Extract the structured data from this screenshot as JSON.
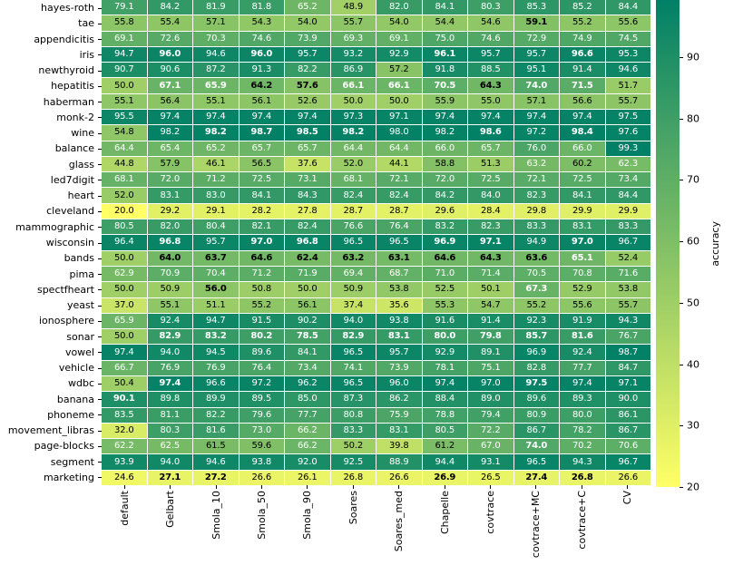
{
  "figure": {
    "background": "#ffffff",
    "grid_line_color": "#ffffff",
    "axis_tick_color": "#000000"
  },
  "chart_data": {
    "type": "heatmap",
    "title": "",
    "colorbar_label": "accuracy",
    "colormap_name": "summer_r (yellow to sea-green)",
    "colormap_stops": [
      {
        "t": 0.0,
        "color": "#ffff66"
      },
      {
        "t": 0.5,
        "color": "#80bf66"
      },
      {
        "t": 1.0,
        "color": "#008066"
      }
    ],
    "vmin": 20.0,
    "vmax": 99.3,
    "colorbar_ticks": [
      90,
      80,
      70,
      60,
      50,
      40,
      30,
      20
    ],
    "legend_position": "right",
    "annotation_rule": {
      "normal_white_min": 62.0,
      "bold_white_min": 65.0,
      "light_text": "#ffffff",
      "dark_text": "#000000"
    },
    "columns": [
      "default",
      "Gelbart",
      "Smola_10",
      "Smola_50",
      "Smola_90",
      "Soares",
      "Soares_med",
      "Chapelle",
      "covtrace",
      "covtrace+MC",
      "covtrace+C",
      "CV"
    ],
    "rows": [
      "hayes-roth",
      "tae",
      "appendicitis",
      "iris",
      "newthyroid",
      "hepatitis",
      "haberman",
      "monk-2",
      "wine",
      "balance",
      "glass",
      "led7digit",
      "heart",
      "cleveland",
      "mammographic",
      "wisconsin",
      "bands",
      "pima",
      "spectfheart",
      "yeast",
      "ionosphere",
      "sonar",
      "vowel",
      "vehicle",
      "wdbc",
      "banana",
      "phoneme",
      "movement_libras",
      "page-blocks",
      "segment",
      "marketing"
    ],
    "values": [
      [
        "79.1",
        "84.2",
        "81.9",
        "81.8",
        "65.2",
        "48.9",
        "82.0",
        "84.1",
        "80.3",
        "85.3",
        "85.2",
        "84.4"
      ],
      [
        "55.8",
        "55.4",
        "57.1",
        "54.3",
        "54.0",
        "55.7",
        "54.0",
        "54.4",
        "54.6",
        "59.1",
        "55.2",
        "55.6"
      ],
      [
        "69.1",
        "72.6",
        "70.3",
        "74.6",
        "73.9",
        "69.3",
        "69.1",
        "75.0",
        "74.6",
        "72.9",
        "74.9",
        "74.5"
      ],
      [
        "94.7",
        "96.0",
        "94.6",
        "96.0",
        "95.7",
        "93.2",
        "92.9",
        "96.1",
        "95.7",
        "95.7",
        "96.6",
        "95.3"
      ],
      [
        "90.7",
        "90.6",
        "87.2",
        "91.3",
        "82.2",
        "86.9",
        "57.2",
        "91.8",
        "88.5",
        "95.1",
        "91.4",
        "94.6"
      ],
      [
        "50.0",
        "67.1",
        "65.9",
        "64.2",
        "57.6",
        "66.1",
        "66.1",
        "70.5",
        "64.3",
        "74.0",
        "71.5",
        "51.7"
      ],
      [
        "55.1",
        "56.4",
        "55.1",
        "56.1",
        "52.6",
        "50.0",
        "50.0",
        "55.9",
        "55.0",
        "57.1",
        "56.6",
        "55.7"
      ],
      [
        "95.5",
        "97.4",
        "97.4",
        "97.4",
        "97.4",
        "97.3",
        "97.1",
        "97.4",
        "97.4",
        "97.4",
        "97.4",
        "97.5"
      ],
      [
        "54.8",
        "98.2",
        "98.2",
        "98.7",
        "98.5",
        "98.2",
        "98.0",
        "98.2",
        "98.6",
        "97.2",
        "98.4",
        "97.6"
      ],
      [
        "64.4",
        "65.4",
        "65.2",
        "65.7",
        "65.7",
        "64.4",
        "64.4",
        "66.0",
        "65.7",
        "76.0",
        "66.0",
        "99.3"
      ],
      [
        "44.8",
        "57.9",
        "46.1",
        "56.5",
        "37.6",
        "52.0",
        "44.1",
        "58.8",
        "51.3",
        "63.2",
        "60.2",
        "62.3"
      ],
      [
        "68.1",
        "72.0",
        "71.2",
        "72.5",
        "73.1",
        "68.1",
        "72.1",
        "72.0",
        "72.5",
        "72.1",
        "72.5",
        "73.4"
      ],
      [
        "52.0",
        "83.1",
        "83.0",
        "84.1",
        "84.3",
        "82.4",
        "82.4",
        "84.2",
        "84.0",
        "82.3",
        "84.1",
        "84.4"
      ],
      [
        "20.0",
        "29.2",
        "29.1",
        "28.2",
        "27.8",
        "28.7",
        "28.7",
        "29.6",
        "28.4",
        "29.8",
        "29.9",
        "29.9"
      ],
      [
        "80.5",
        "82.0",
        "80.4",
        "82.1",
        "82.4",
        "76.6",
        "76.4",
        "83.2",
        "82.3",
        "83.3",
        "83.1",
        "83.3"
      ],
      [
        "96.4",
        "96.8",
        "95.7",
        "97.0",
        "96.8",
        "96.5",
        "96.5",
        "96.9",
        "97.1",
        "94.9",
        "97.0",
        "96.7"
      ],
      [
        "50.0",
        "64.0",
        "63.7",
        "64.6",
        "62.4",
        "63.2",
        "63.1",
        "64.6",
        "64.3",
        "63.6",
        "65.1",
        "52.4"
      ],
      [
        "62.9",
        "70.9",
        "70.4",
        "71.2",
        "71.9",
        "69.4",
        "68.7",
        "71.0",
        "71.4",
        "70.5",
        "70.8",
        "71.6"
      ],
      [
        "50.0",
        "50.9",
        "56.0",
        "50.8",
        "50.0",
        "50.9",
        "53.8",
        "52.5",
        "50.1",
        "67.3",
        "52.9",
        "53.8"
      ],
      [
        "37.0",
        "55.1",
        "51.1",
        "55.2",
        "56.1",
        "37.4",
        "35.6",
        "55.3",
        "54.7",
        "55.2",
        "55.6",
        "55.7"
      ],
      [
        "65.9",
        "92.4",
        "94.7",
        "91.5",
        "90.2",
        "94.0",
        "93.8",
        "91.6",
        "91.4",
        "92.3",
        "91.9",
        "94.3"
      ],
      [
        "50.0",
        "82.9",
        "83.2",
        "80.2",
        "78.5",
        "82.9",
        "83.1",
        "80.0",
        "79.8",
        "85.7",
        "81.6",
        "76.7"
      ],
      [
        "97.4",
        "94.0",
        "94.5",
        "89.6",
        "84.1",
        "96.5",
        "95.7",
        "92.9",
        "89.1",
        "96.9",
        "92.4",
        "98.7"
      ],
      [
        "66.7",
        "76.9",
        "76.9",
        "76.4",
        "73.4",
        "74.1",
        "73.9",
        "78.1",
        "75.1",
        "82.8",
        "77.7",
        "84.7"
      ],
      [
        "50.4",
        "97.4",
        "96.6",
        "97.2",
        "96.2",
        "96.5",
        "96.0",
        "97.4",
        "97.0",
        "97.5",
        "97.4",
        "97.1"
      ],
      [
        "90.1",
        "89.8",
        "89.9",
        "89.5",
        "85.0",
        "87.3",
        "86.2",
        "88.4",
        "89.0",
        "89.6",
        "89.3",
        "90.0"
      ],
      [
        "83.5",
        "81.1",
        "82.2",
        "79.6",
        "77.7",
        "80.8",
        "75.9",
        "78.8",
        "79.4",
        "80.9",
        "80.0",
        "86.1"
      ],
      [
        "32.0",
        "80.3",
        "81.6",
        "73.0",
        "66.2",
        "83.3",
        "83.1",
        "80.5",
        "72.2",
        "86.7",
        "78.2",
        "86.7"
      ],
      [
        "62.2",
        "62.5",
        "61.5",
        "59.6",
        "66.2",
        "50.2",
        "39.8",
        "61.2",
        "67.0",
        "74.0",
        "70.2",
        "70.6"
      ],
      [
        "93.9",
        "94.0",
        "94.6",
        "93.8",
        "92.0",
        "92.5",
        "88.9",
        "94.4",
        "93.1",
        "96.5",
        "94.3",
        "96.7"
      ],
      [
        "24.6",
        "27.1",
        "27.2",
        "26.6",
        "26.1",
        "26.8",
        "26.6",
        "26.9",
        "26.5",
        "27.4",
        "26.8",
        "26.6"
      ]
    ],
    "bold_cols": [
      [],
      [
        9
      ],
      [],
      [
        1,
        3,
        7,
        10
      ],
      [],
      [
        1,
        2,
        3,
        4,
        5,
        6,
        7,
        8,
        9,
        10
      ],
      [],
      [],
      [
        2,
        3,
        4,
        5,
        8,
        10
      ],
      [],
      [],
      [],
      [],
      [],
      [],
      [
        1,
        3,
        4,
        7,
        8,
        10
      ],
      [
        1,
        2,
        3,
        4,
        5,
        6,
        7,
        8,
        9,
        10
      ],
      [],
      [
        2,
        9
      ],
      [],
      [],
      [
        1,
        2,
        3,
        4,
        5,
        6,
        7,
        8,
        9,
        10
      ],
      [],
      [],
      [
        1,
        9
      ],
      [
        0
      ],
      [],
      [],
      [
        9
      ],
      [],
      [
        1,
        2,
        7,
        9,
        10
      ]
    ]
  }
}
